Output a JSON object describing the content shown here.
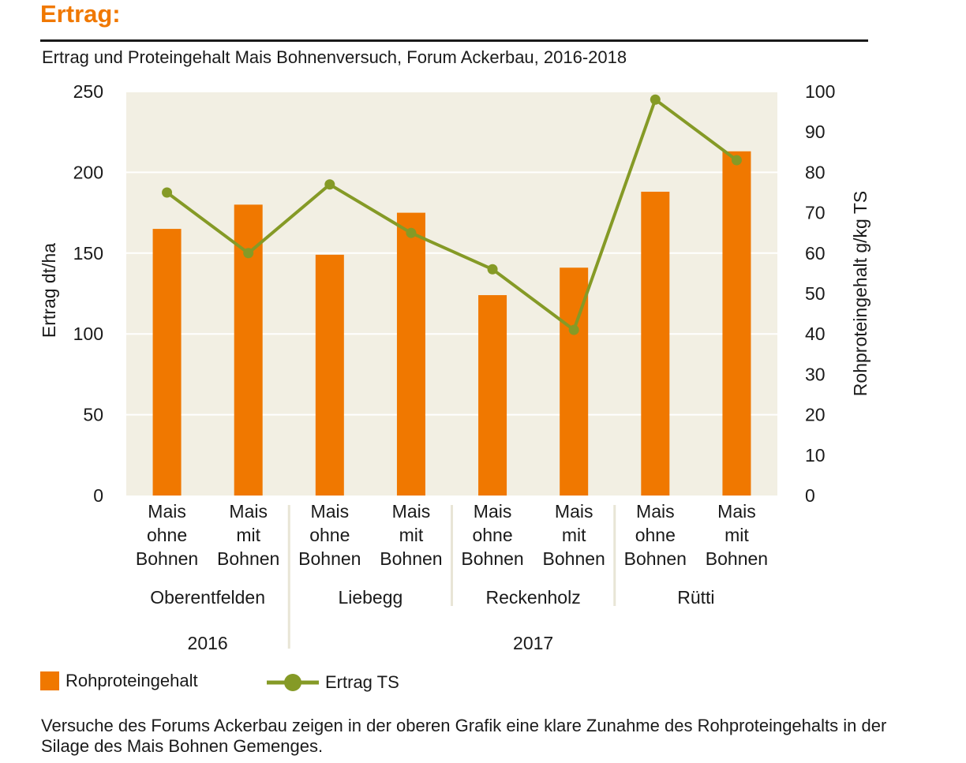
{
  "header": {
    "title": "Ertrag:",
    "subtitle": "Ertrag und Proteingehalt Mais Bohnenversuch, Forum Ackerbau, 2016-2018"
  },
  "chart_data": {
    "type": "bar+line",
    "categories": [
      [
        "Mais",
        "ohne",
        "Bohnen"
      ],
      [
        "Mais",
        "mit",
        "Bohnen"
      ],
      [
        "Mais",
        "ohne",
        "Bohnen"
      ],
      [
        "Mais",
        "mit",
        "Bohnen"
      ],
      [
        "Mais",
        "ohne",
        "Bohnen"
      ],
      [
        "Mais",
        "mit",
        "Bohnen"
      ],
      [
        "Mais",
        "ohne",
        "Bohnen"
      ],
      [
        "Mais",
        "mit",
        "Bohnen"
      ]
    ],
    "locations": [
      "Oberentfelden",
      "Liebegg",
      "Reckenholz",
      "Rütti"
    ],
    "years": [
      {
        "label": "2016",
        "span": [
          0,
          1
        ]
      },
      {
        "label": "2017",
        "span": [
          2,
          7
        ]
      }
    ],
    "series": [
      {
        "name": "Rohproteingehalt",
        "type": "bar",
        "axis": "left",
        "values": [
          165,
          180,
          149,
          175,
          124,
          141,
          188,
          213
        ]
      },
      {
        "name": "Ertrag TS",
        "type": "line",
        "axis": "right",
        "values": [
          75,
          60,
          77,
          65,
          56,
          41,
          98,
          83
        ]
      }
    ],
    "y_left": {
      "label": "Ertrag dt/ha",
      "min": 0,
      "max": 250,
      "ticks": [
        "0",
        "50",
        "100",
        "150",
        "200",
        "250"
      ]
    },
    "y_right": {
      "label": "Rohproteingehalt g/kg TS",
      "min": 0,
      "max": 100,
      "ticks": [
        "0",
        "10",
        "20",
        "30",
        "40",
        "50",
        "60",
        "70",
        "80",
        "90",
        "100"
      ]
    },
    "grid": true,
    "legend": "bottom-left",
    "colors": {
      "bar": "#f07800",
      "line": "#859a26",
      "plot_bg": "#f2efe3"
    }
  },
  "legend": {
    "bar_label": "Rohproteingehalt",
    "line_label": "Ertrag TS"
  },
  "caption": "Versuche des Forums Ackerbau zeigen in der oberen Grafik eine klare Zunahme des Rohproteingehalts in der Silage des Mais Bohnen Gemenges."
}
